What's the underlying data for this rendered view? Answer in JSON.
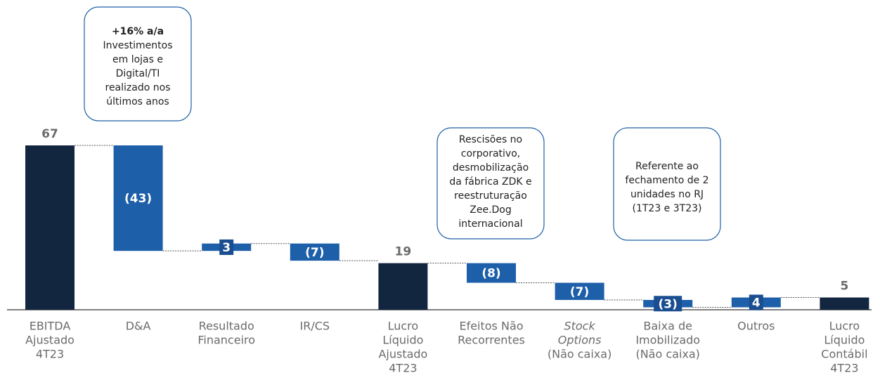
{
  "chart_data": {
    "type": "waterfall",
    "categories": [
      [
        "EBITDA",
        "Ajustado",
        "4T23"
      ],
      [
        "D&A"
      ],
      [
        "Resultado",
        "Financeiro"
      ],
      [
        "IR/CS"
      ],
      [
        "Lucro",
        "Líquido",
        "Ajustado",
        "4T23"
      ],
      [
        "Efeitos Não",
        "Recorrentes"
      ],
      [
        "Stock",
        "Options",
        "(Não caixa)"
      ],
      [
        "Baixa de",
        "Imobilizado",
        "(Não caixa)"
      ],
      [
        "Outros"
      ],
      [
        "Lucro",
        "Líquido",
        "Contábil",
        "4T23"
      ]
    ],
    "italic_category_lines": {
      "6": [
        0,
        1
      ]
    },
    "values": [
      67,
      -43,
      3,
      -7,
      19,
      -8,
      -7,
      -3,
      4,
      5
    ],
    "value_labels": [
      "67",
      "(43)",
      "3",
      "(7)",
      "19",
      "(8)",
      "(7)",
      "(3)",
      "4",
      "5"
    ],
    "totals": [
      0,
      4,
      9
    ],
    "total_color": "#13263f",
    "step_color": "#1d5fa8",
    "ylim": [
      0,
      67
    ],
    "annotations": [
      {
        "highlight": "+16% a/a",
        "lines": [
          "Investimentos",
          "em lojas e",
          "Digital/TI",
          "realizado nos",
          "últimos anos"
        ]
      },
      {
        "lines": [
          "Rescisões no",
          "corporativo,",
          "desmobilização",
          "da fábrica ZDK e",
          "reestruturação",
          "Zee.Dog",
          "internacional"
        ]
      },
      {
        "lines": [
          "Referente ao",
          "fechamento de 2",
          "unidades no RJ",
          "(1T23 e 3T23)"
        ]
      }
    ]
  }
}
